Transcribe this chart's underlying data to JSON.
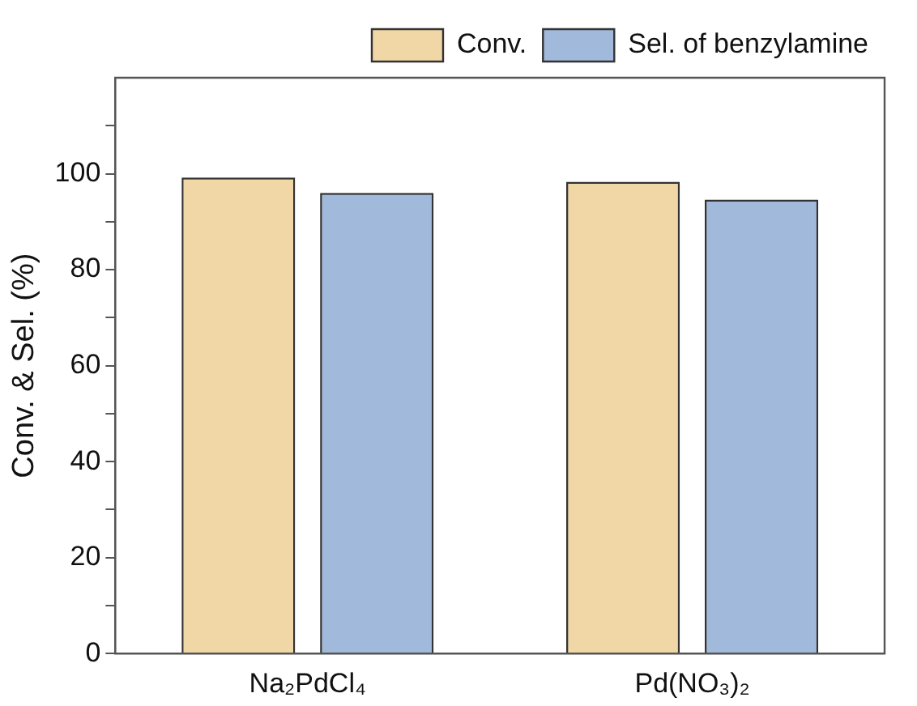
{
  "chart_data": {
    "type": "bar",
    "ylabel": "Conv. & Sel. (%)",
    "categories": [
      "Na₂PdCl₄",
      "Pd(NO₃)₂"
    ],
    "series": [
      {
        "name": "Conv.",
        "color": "#e3a73a",
        "values": [
          99.2,
          98.3
        ]
      },
      {
        "name": "Sel. of benzylamine",
        "color": "#2f64ad",
        "values": [
          96,
          94.6
        ]
      }
    ],
    "ylim": [
      0,
      120
    ],
    "yticks": [
      0,
      {
        "value": 10,
        "label": null
      },
      20,
      {
        "value": 30,
        "label": null
      },
      40,
      {
        "value": 50,
        "label": null
      },
      60,
      {
        "value": 70,
        "label": null
      },
      80,
      {
        "value": 90,
        "label": null
      },
      100,
      {
        "value": 110,
        "label": null
      }
    ],
    "grid": false,
    "legend": "top"
  }
}
